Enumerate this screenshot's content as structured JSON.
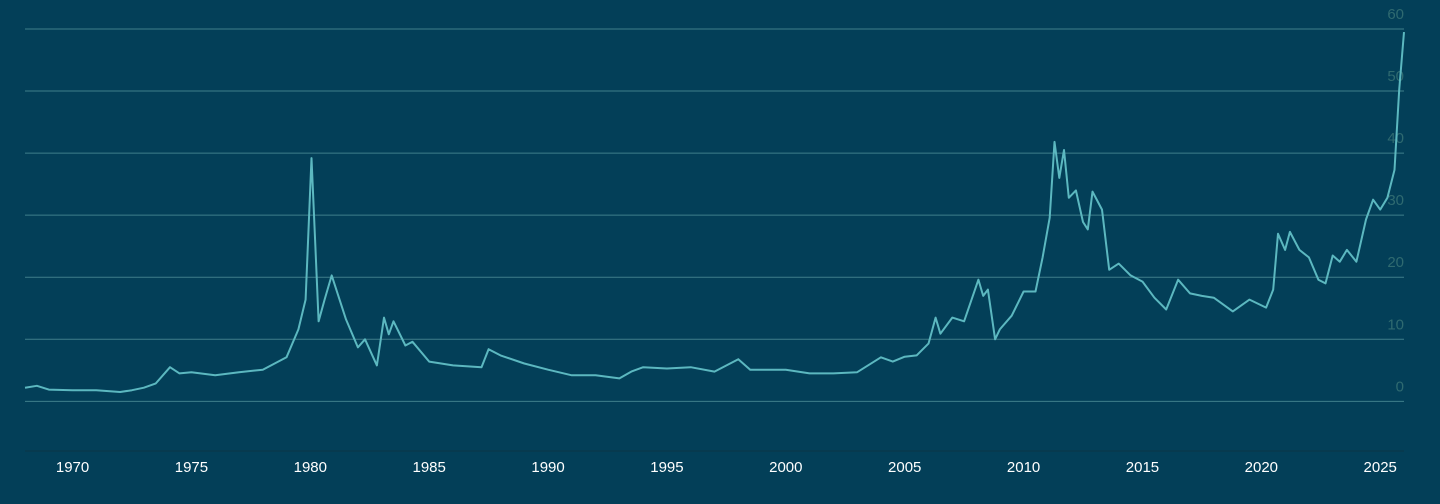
{
  "chart_data": {
    "type": "line",
    "x": [
      1968.0,
      1968.5,
      1969,
      1970,
      1971,
      1972,
      1972.5,
      1973,
      1973.5,
      1974.1,
      1974.5,
      1975,
      1976,
      1977,
      1978,
      1979,
      1979.5,
      1979.8,
      1980.05,
      1980.2,
      1980.35,
      1980.6,
      1980.9,
      1981.5,
      1982,
      1982.3,
      1982.8,
      1983.1,
      1983.3,
      1983.5,
      1984,
      1984.3,
      1985,
      1986,
      1987.2,
      1987.5,
      1988,
      1989,
      1990,
      1991,
      1992,
      1993,
      1993.5,
      1994,
      1995,
      1996,
      1997,
      1998,
      1998.5,
      1999,
      2000,
      2001,
      2002,
      2003,
      2004,
      2004.5,
      2005,
      2005.5,
      2006,
      2006.3,
      2006.5,
      2007,
      2007.5,
      2008.1,
      2008.3,
      2008.5,
      2008.8,
      2009,
      2009.5,
      2010,
      2010.5,
      2010.8,
      2011.1,
      2011.3,
      2011.5,
      2011.7,
      2011.9,
      2012.2,
      2012.5,
      2012.7,
      2012.9,
      2013.3,
      2013.6,
      2014,
      2014.5,
      2015,
      2015.5,
      2016,
      2016.5,
      2017,
      2017.5,
      2018,
      2018.8,
      2019.5,
      2020.2,
      2020.5,
      2020.7,
      2021,
      2021.2,
      2021.6,
      2022,
      2022.4,
      2022.7,
      2023,
      2023.3,
      2023.6,
      2024,
      2024.4,
      2024.7,
      2025,
      2025.3,
      2025.6,
      2025.8,
      2026.0
    ],
    "series": [
      {
        "color": "#5cb8c0",
        "values": [
          2.2,
          2.5,
          1.9,
          1.8,
          1.8,
          1.5,
          1.8,
          2.2,
          2.9,
          5.5,
          4.5,
          4.7,
          4.2,
          4.7,
          5.1,
          7.1,
          11.6,
          16.4,
          39.2,
          26,
          12.9,
          16.4,
          20.3,
          13.2,
          8.7,
          10,
          5.8,
          13.5,
          10.8,
          12.9,
          9,
          9.6,
          6.4,
          5.8,
          5.5,
          8.4,
          7.4,
          6.1,
          5.1,
          4.2,
          4.2,
          3.7,
          4.8,
          5.5,
          5.3,
          5.5,
          4.8,
          6.8,
          5.1,
          5.1,
          5.1,
          4.5,
          4.5,
          4.7,
          7.1,
          6.4,
          7.2,
          7.4,
          9.3,
          13.5,
          10.9,
          13.5,
          12.9,
          19.6,
          17,
          18,
          10,
          11.6,
          13.8,
          17.7,
          17.7,
          23.2,
          29.6,
          41.8,
          36,
          40.5,
          32.8,
          34,
          28.9,
          27.7,
          33.8,
          30.9,
          21.2,
          22.2,
          20.3,
          19.3,
          16.7,
          14.8,
          19.6,
          17.4,
          17,
          16.7,
          14.5,
          16.4,
          15.1,
          18,
          27,
          24.4,
          27.3,
          24.4,
          23.2,
          19.6,
          19,
          23.5,
          22.5,
          24.4,
          22.5,
          29.3,
          32.5,
          30.9,
          32.8,
          37.3,
          50.2,
          59.5
        ]
      }
    ],
    "xlim": [
      1968,
      2026
    ],
    "xticks": [
      1970,
      1975,
      1980,
      1985,
      1990,
      1995,
      2000,
      2005,
      2010,
      2015,
      2020,
      2025
    ],
    "ylim": [
      -8,
      60
    ],
    "yticks": [
      0,
      10,
      20,
      30,
      40,
      50,
      60
    ],
    "grid": true
  }
}
